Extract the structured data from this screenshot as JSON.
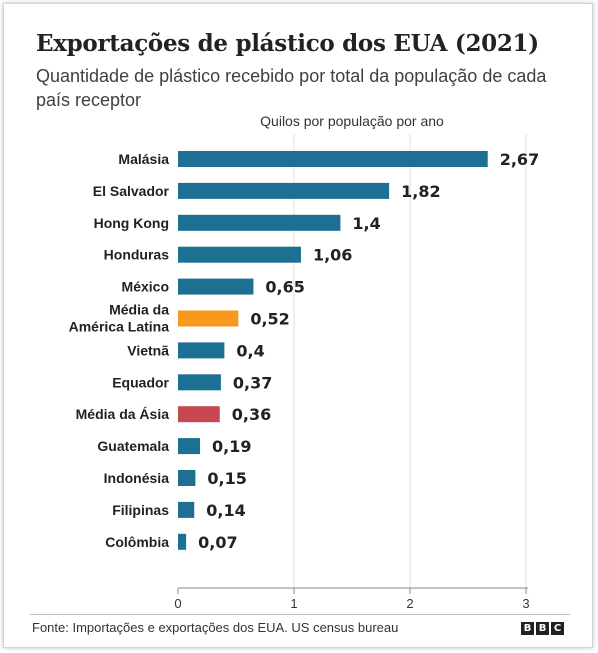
{
  "title": "Exportações de plástico dos EUA (2021)",
  "subtitle": "Quantidade de plástico recebido por total da população de cada país receptor",
  "source": "Fonte: Importações e exportações dos EUA. US census bureau",
  "logo": [
    "B",
    "B",
    "C"
  ],
  "colors": {
    "country": "#1d7092",
    "latam": "#f8981d",
    "asia": "#c6474f",
    "axis": "#888888",
    "text": "#222222"
  },
  "chart_data": {
    "type": "bar",
    "orientation": "horizontal",
    "xlabel": "Quilos por população por ano",
    "xlim": [
      0,
      3
    ],
    "xticks": [
      "0",
      "1",
      "2",
      "3"
    ],
    "grid": true,
    "categories": [
      "Malásia",
      "El Salvador",
      "Hong Kong",
      "Honduras",
      "México",
      "Média da América Latina",
      "Vietnã",
      "Equador",
      "Média da Ásia",
      "Guatemala",
      "Indonésia",
      "Filipinas",
      "Colômbia"
    ],
    "category_lines": [
      [
        "Malásia"
      ],
      [
        "El Salvador"
      ],
      [
        "Hong Kong"
      ],
      [
        "Honduras"
      ],
      [
        "México"
      ],
      [
        "Média da",
        "América Latina"
      ],
      [
        "Vietnã"
      ],
      [
        "Equador"
      ],
      [
        "Média da Ásia"
      ],
      [
        "Guatemala"
      ],
      [
        "Indonésia"
      ],
      [
        "Filipinas"
      ],
      [
        "Colômbia"
      ]
    ],
    "values": [
      2.67,
      1.82,
      1.4,
      1.06,
      0.65,
      0.52,
      0.4,
      0.37,
      0.36,
      0.19,
      0.15,
      0.14,
      0.07
    ],
    "value_labels": [
      "2,67",
      "1,82",
      "1,4",
      "1,06",
      "0,65",
      "0,52",
      "0,4",
      "0,37",
      "0,36",
      "0,19",
      "0,15",
      "0,14",
      "0,07"
    ],
    "bar_color_keys": [
      "country",
      "country",
      "country",
      "country",
      "country",
      "latam",
      "country",
      "country",
      "asia",
      "country",
      "country",
      "country",
      "country"
    ]
  }
}
